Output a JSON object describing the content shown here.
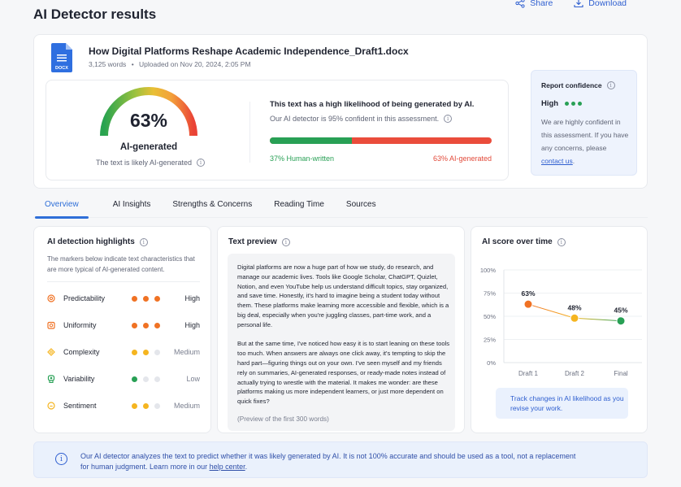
{
  "header": {
    "title": "AI Detector results",
    "share_label": "Share",
    "download_label": "Download"
  },
  "document": {
    "name": "How Digital Platforms Reshape Academic Independence_Draft1.docx",
    "file_type": "DOCX",
    "word_count": "3,125 words",
    "separator": "•",
    "uploaded": "Uploaded on Nov 20, 2024, 2:05 PM"
  },
  "score": {
    "value": "63%",
    "percent": 63,
    "label": "AI-generated",
    "sub": "The text is likely AI-generated"
  },
  "assessment": {
    "title": "This text has a high likelihood of being generated by AI.",
    "confidence_text": "Our AI detector is 95% confident in this assessment.",
    "human_percent": 37,
    "ai_percent": 63,
    "human_label": "37% Human-written",
    "ai_label": "63% AI-generated",
    "human_color": "#28a055",
    "ai_color": "#ea4c3b"
  },
  "report_confidence": {
    "title": "Report confidence",
    "level": "High",
    "dots_filled": 3,
    "text_before": "We are highly confident in this assessment. If you have any concerns, please",
    "link": "contact us",
    "text_after": "."
  },
  "tabs": [
    {
      "label": "Overview",
      "active": true
    },
    {
      "label": "AI Insights",
      "active": false
    },
    {
      "label": "Strengths & Concerns",
      "active": false
    },
    {
      "label": "Reading Time",
      "active": false
    },
    {
      "label": "Sources",
      "active": false
    }
  ],
  "highlights": {
    "title": "AI detection highlights",
    "description": "The markers below indicate text characteristics that are more typical of AI-generated content.",
    "items": [
      {
        "name": "Predictability",
        "level": "High",
        "filled": 3,
        "color": "#f07224",
        "icon": "target-icon"
      },
      {
        "name": "Uniformity",
        "level": "High",
        "filled": 3,
        "color": "#f07224",
        "icon": "grid-icon"
      },
      {
        "name": "Complexity",
        "level": "Medium",
        "filled": 2,
        "color": "#f5b520",
        "icon": "layers-icon"
      },
      {
        "name": "Variability",
        "level": "Low",
        "filled": 1,
        "color": "#28a055",
        "icon": "shuffle-icon"
      },
      {
        "name": "Sentiment",
        "level": "Medium",
        "filled": 2,
        "color": "#f5b520",
        "icon": "smile-icon"
      }
    ]
  },
  "preview": {
    "title": "Text preview",
    "paragraphs": [
      "Digital platforms are now a huge part of how we study, do research, and manage our academic lives. Tools like Google Scholar, ChatGPT, Quizlet, Notion, and even YouTube help us understand difficult topics, stay organized, and save time. Honestly, it's hard to imagine being a student today without them. These platforms make learning more accessible and flexible, which is a big deal, especially when you're juggling classes, part-time work, and a personal life.",
      "But at the same time, I've noticed how easy it is to start leaning on these tools too much. When answers are always one click away, it's tempting to skip the hard part—figuring things out on your own. I've seen myself and my friends rely on summaries, AI-generated responses, or ready-made notes instead of actually trying to wrestle with the material. It makes me wonder: are these platforms making us more independent learners, or just more dependent on quick fixes?"
    ],
    "note": "(Preview of the first 300 words)"
  },
  "chart_data": {
    "type": "line",
    "title": "AI score over time",
    "categories": [
      "Draft 1",
      "Draft 2",
      "Final"
    ],
    "values": [
      63,
      48,
      45
    ],
    "data_labels": [
      "63%",
      "48%",
      "45%"
    ],
    "point_colors": [
      "#f07224",
      "#f5b520",
      "#28a055"
    ],
    "yticks": [
      "0%",
      "25%",
      "50%",
      "75%",
      "100%"
    ],
    "ylim": [
      0,
      100
    ],
    "grid": true,
    "xlabel": "",
    "ylabel": ""
  },
  "chart_note": "Track changes in AI likelihood as you revise your work.",
  "footer": {
    "text": "Our AI detector analyzes the text to predict whether it was likely generated by AI. It is not 100% accurate and should be used  as a tool, not a replacement for human judgment. Learn more in our",
    "link": "help center",
    "end": "."
  }
}
